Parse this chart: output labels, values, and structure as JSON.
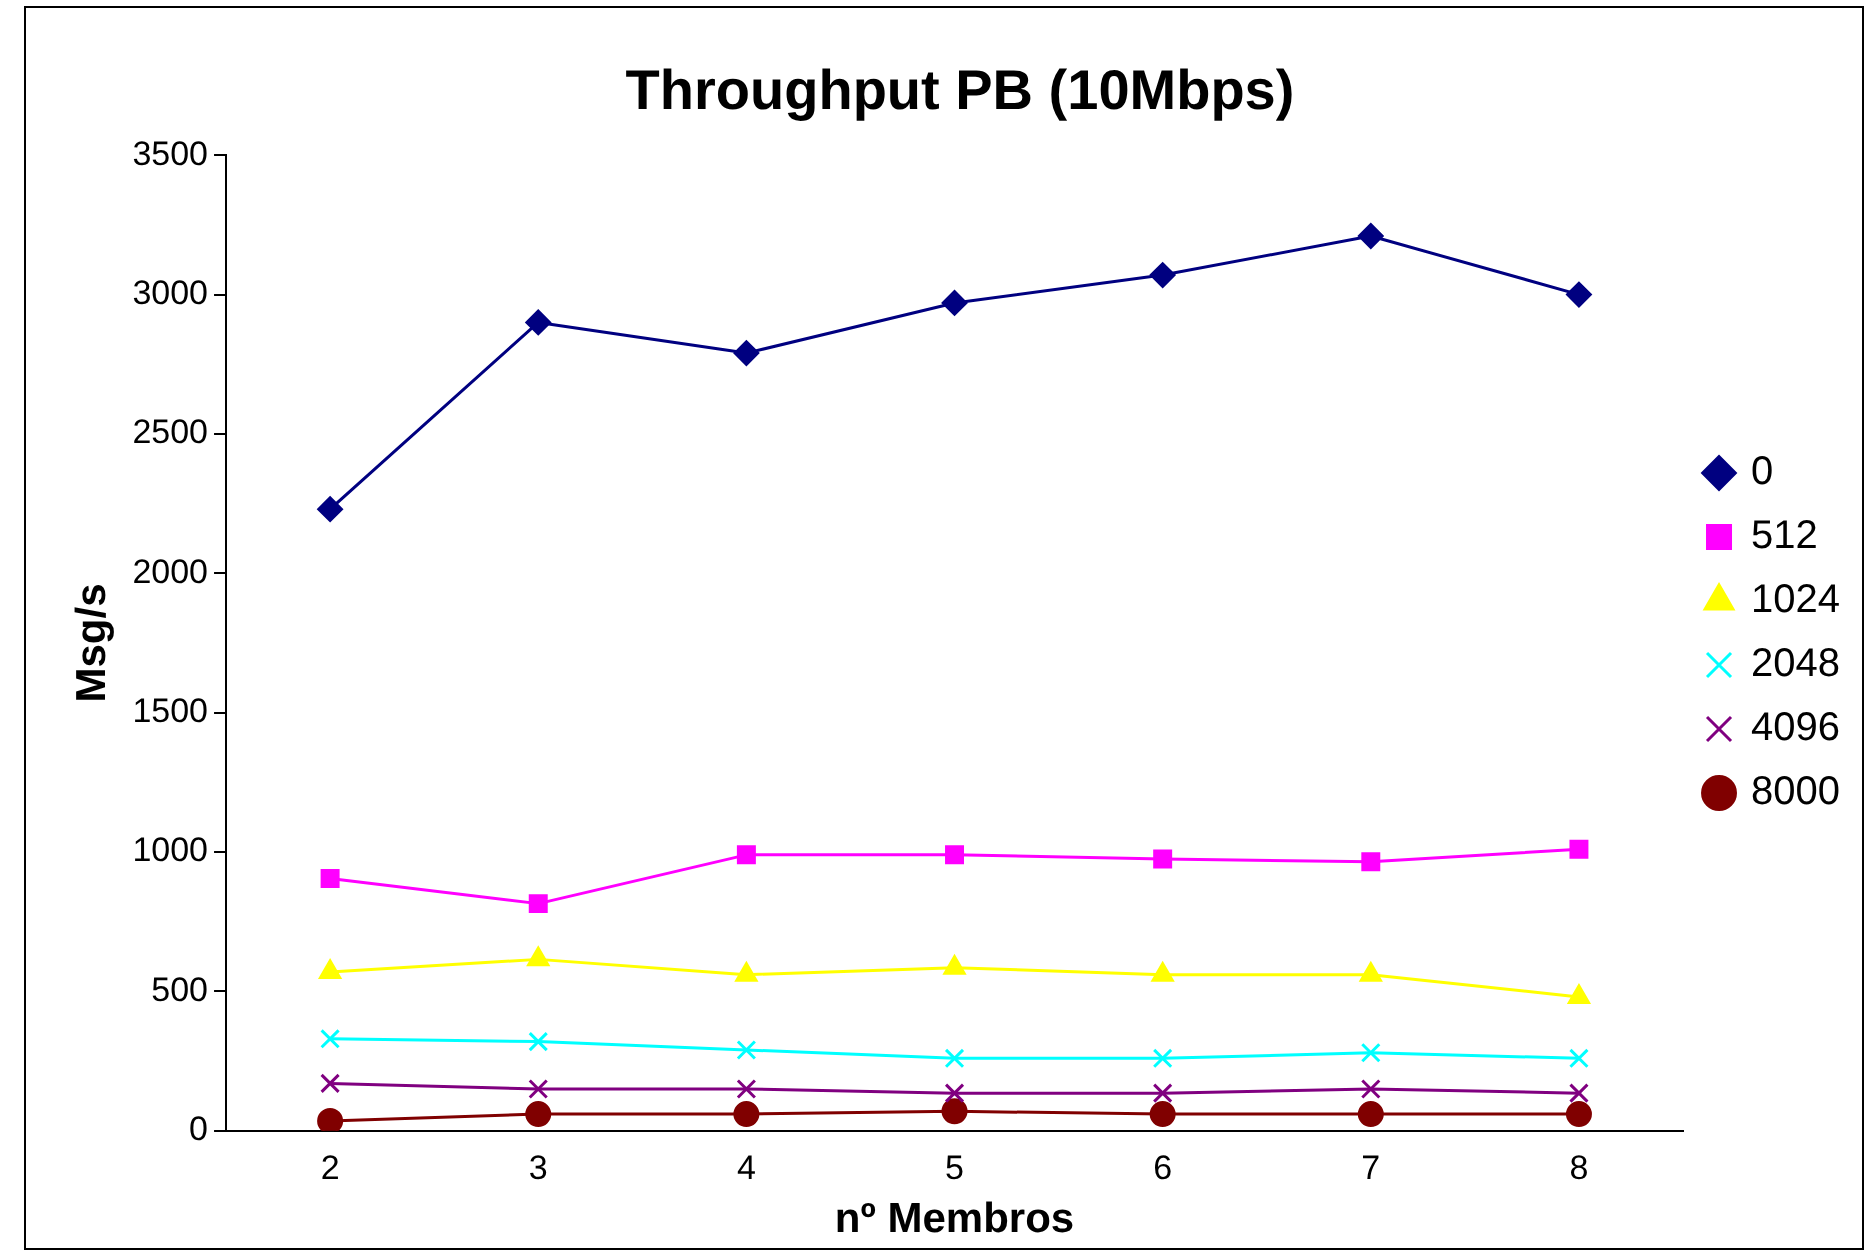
{
  "chart_data": {
    "type": "line",
    "title": "Throughput PB (10Mbps)",
    "xlabel": "nº Membros",
    "ylabel": "Msg/s",
    "categories": [
      "2",
      "3",
      "4",
      "5",
      "6",
      "7",
      "8"
    ],
    "ylim": [
      0,
      3500
    ],
    "yticks": [
      0,
      500,
      1000,
      1500,
      2000,
      2500,
      3000,
      3500
    ],
    "grid": false,
    "legend": "right",
    "line_style": "solid",
    "series": [
      {
        "name": "0",
        "color": "#000080",
        "marker": "diamond",
        "values": [
          2230,
          2900,
          2790,
          2970,
          3070,
          3210,
          3000
        ]
      },
      {
        "name": "512",
        "color": "#ff00ff",
        "marker": "square",
        "values": [
          905,
          815,
          990,
          990,
          975,
          965,
          1010
        ]
      },
      {
        "name": "1024",
        "color": "#ffff00",
        "marker": "triangle",
        "values": [
          570,
          615,
          560,
          585,
          560,
          560,
          480
        ]
      },
      {
        "name": "2048",
        "color": "#00ffff",
        "marker": "cross",
        "values": [
          330,
          320,
          290,
          260,
          260,
          280,
          260
        ]
      },
      {
        "name": "4096",
        "color": "#800080",
        "marker": "cross",
        "values": [
          170,
          150,
          150,
          135,
          135,
          150,
          135
        ]
      },
      {
        "name": "8000",
        "color": "#800000",
        "marker": "circle",
        "values": [
          35,
          60,
          60,
          70,
          60,
          60,
          60
        ]
      }
    ]
  }
}
